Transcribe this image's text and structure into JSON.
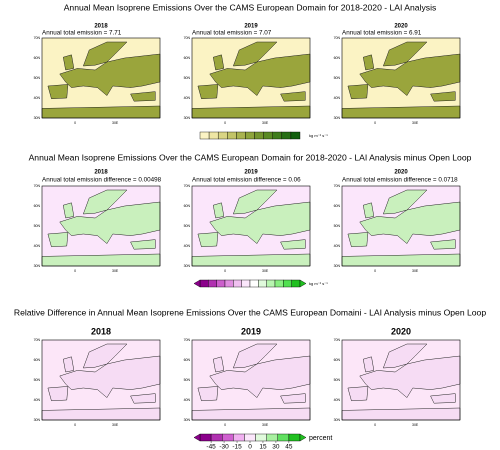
{
  "rows": [
    {
      "title": "Annual Mean Isoprene Emissions Over the CAMS European Domain for 2018-2020 - LAI Analysis",
      "panels": [
        {
          "year": "2018",
          "annotation": "Annual total emission = 7.71"
        },
        {
          "year": "2019",
          "annotation": "Annual total emission = 7.07"
        },
        {
          "year": "2020",
          "annotation": "Annual total emission = 6.91"
        }
      ],
      "map_colors": {
        "background": "#fbf3c4",
        "land": "#9aa53c"
      },
      "colorbar": {
        "unit": "kg m⁻² s⁻¹",
        "colors": [
          "#fbf3c4",
          "#eee6a4",
          "#d9d584",
          "#c2c468",
          "#a9b350",
          "#8ea43c",
          "#74952e",
          "#5a8a24",
          "#3f7d1c",
          "#276f15",
          "#125f0e"
        ]
      }
    },
    {
      "title": "Annual Mean Isoprene Emissions Over the CAMS European Domain for 2018-2020 - LAI Analysis minus Open Loop",
      "panels": [
        {
          "year": "2018",
          "annotation": "Annual total emission difference = 0.00498"
        },
        {
          "year": "2019",
          "annotation": "Annual total emission difference = 0.06"
        },
        {
          "year": "2020",
          "annotation": "Annual total emission difference = 0.0718"
        }
      ],
      "map_colors": {
        "background": "#fbe6fb",
        "land": "#c9f0bd"
      },
      "colorbar": {
        "unit": "kg m⁻² s⁻¹",
        "colors": [
          "#8b008b",
          "#b030b0",
          "#cc5fcc",
          "#e08ee0",
          "#f0c0f0",
          "#fbe6fb",
          "#ffffff",
          "#e0fadc",
          "#b8f5b0",
          "#88ee80",
          "#50e050",
          "#20c020"
        ]
      }
    },
    {
      "title": "Relative Difference in Annual Mean Isoprene Emissions Over the CAMS European Domaini - LAI Analysis minus Open Loop",
      "panels": [
        {
          "year": "2018"
        },
        {
          "year": "2019"
        },
        {
          "year": "2020"
        }
      ],
      "map_colors": {
        "background": "#fce6f8",
        "land": "#f6dcf4"
      },
      "colorbar": {
        "unit": "percent",
        "colors": [
          "#8b008b",
          "#b030b0",
          "#d060d0",
          "#f0b0f0",
          "#fbe6fb",
          "#e0fadc",
          "#a8f0a0",
          "#60e060",
          "#20c020"
        ],
        "ticks": [
          -45,
          -30,
          -15,
          0,
          15,
          30,
          45
        ]
      }
    }
  ],
  "map_axis": {
    "lat_labels": [
      "70N",
      "60N",
      "50N",
      "40N",
      "30N"
    ],
    "lon_labels": [
      "0",
      "30E"
    ]
  }
}
